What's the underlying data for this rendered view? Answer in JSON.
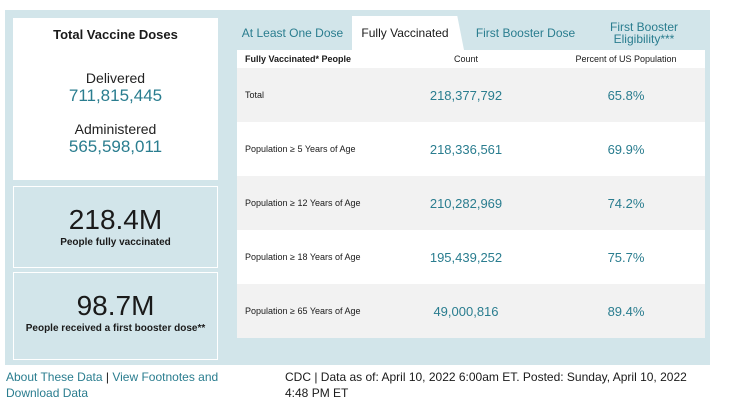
{
  "summary": {
    "title": "Total Vaccine Doses",
    "delivered_label": "Delivered",
    "delivered_value": "711,815,445",
    "administered_label": "Administered",
    "administered_value": "565,598,011"
  },
  "stats": {
    "fully_value": "218.4M",
    "fully_caption": "People fully vaccinated",
    "booster_value": "98.7M",
    "booster_caption": "People received a first booster dose**"
  },
  "tabs": [
    {
      "label": "At Least One Dose"
    },
    {
      "label": "Fully Vaccinated"
    },
    {
      "label": "First Booster Dose"
    },
    {
      "label": "First Booster Eligibility***"
    }
  ],
  "table": {
    "headers": [
      "Fully Vaccinated* People",
      "Count",
      "Percent of US Population"
    ],
    "rows": [
      {
        "group": "Total",
        "count": "218,377,792",
        "percent": "65.8%"
      },
      {
        "group": "Population ≥ 5 Years of Age",
        "count": "218,336,561",
        "percent": "69.9%"
      },
      {
        "group": "Population ≥ 12 Years of Age",
        "count": "210,282,969",
        "percent": "74.2%"
      },
      {
        "group": "Population ≥ 18 Years of Age",
        "count": "195,439,252",
        "percent": "75.7%"
      },
      {
        "group": "Population ≥ 65 Years of Age",
        "count": "49,000,816",
        "percent": "89.4%"
      }
    ]
  },
  "footer": {
    "about_link": "About These Data",
    "separator": "|",
    "footnotes_link": "View Footnotes and Download Data",
    "source_text": "CDC | Data as of: April 10, 2022 6:00am ET. Posted: Sunday, April 10, 2022 4:48 PM ET"
  },
  "colors": {
    "accent": "#2a7d8f",
    "panel": "#d2e5ea"
  }
}
